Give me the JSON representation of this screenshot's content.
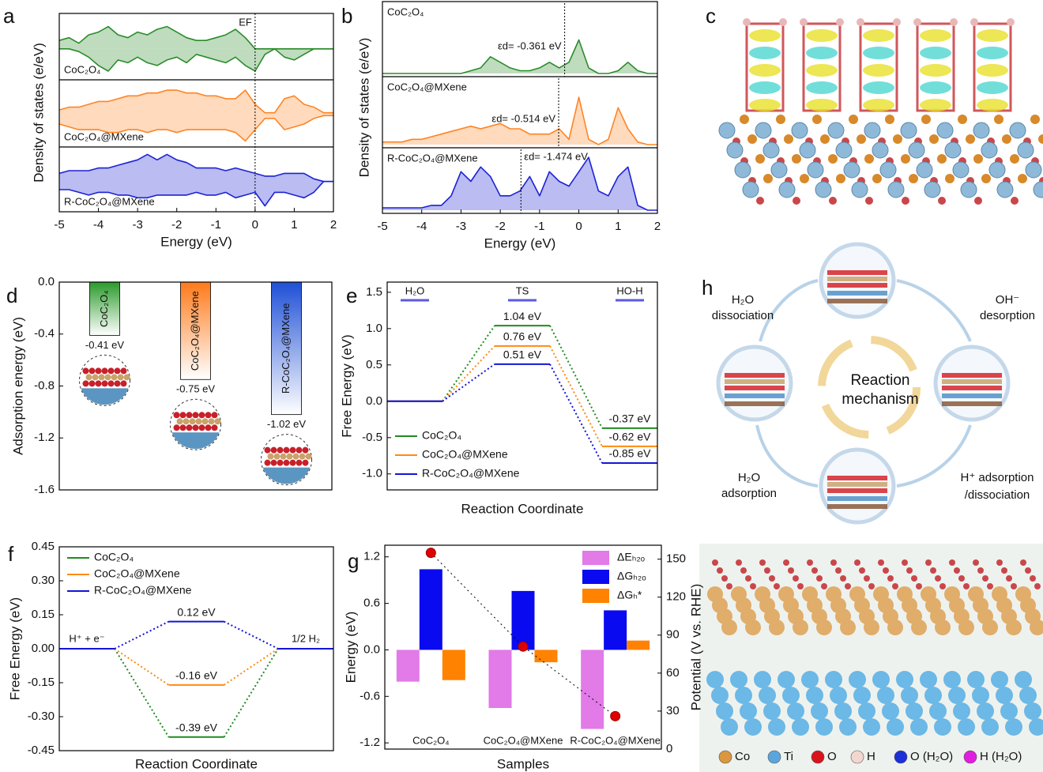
{
  "chart_data": [
    {
      "type": "area",
      "panel": "a",
      "xlabel": "Energy (eV)",
      "ylabel": "Density of states (e/eV)",
      "xlim": [
        -5,
        2
      ],
      "xticks": [
        -5,
        -4,
        -3,
        -2,
        -1,
        0,
        1,
        2
      ],
      "ylim": [
        -1,
        1.1
      ],
      "fermi": {
        "label": "EF",
        "value": 0
      },
      "x": [
        -5,
        -4.75,
        -4.5,
        -4.25,
        -4,
        -3.75,
        -3.5,
        -3.25,
        -3,
        -2.75,
        -2.5,
        -2.25,
        -2,
        -1.75,
        -1.5,
        -1.25,
        -1,
        -0.75,
        -0.5,
        -0.25,
        0,
        0.25,
        0.5,
        0.75,
        1,
        1.25,
        1.5,
        1.75,
        2
      ],
      "series": [
        {
          "name": "CoC₂O₄",
          "color": "#2a8c2a",
          "values": [
            0.3,
            0.4,
            0.2,
            0.5,
            0.6,
            0.8,
            0.5,
            0.4,
            0.6,
            0.5,
            0.7,
            0.8,
            0.6,
            0.4,
            0.3,
            0.3,
            0.4,
            0.5,
            0.7,
            0.4,
            0,
            0,
            0,
            0,
            0,
            0,
            0,
            0,
            0
          ],
          "values_down": [
            0,
            0,
            -0.1,
            -0.3,
            -0.6,
            -0.8,
            -0.4,
            -0.5,
            -0.3,
            -0.5,
            -0.6,
            -0.4,
            -0.3,
            -0.5,
            -0.2,
            -0.3,
            -0.4,
            -0.5,
            -0.3,
            -0.6,
            -0.8,
            -0.2,
            0,
            -0.3,
            -0.4,
            -0.2,
            0,
            0,
            0
          ]
        },
        {
          "name": "CoC₂O₄@MXene",
          "color": "#ff8424",
          "values": [
            0.2,
            0.3,
            0.3,
            0.4,
            0.5,
            0.5,
            0.6,
            0.7,
            0.7,
            0.8,
            0.8,
            0.9,
            0.9,
            0.8,
            0.8,
            0.7,
            0.7,
            0.6,
            0.6,
            0.9,
            0.4,
            0.1,
            0.1,
            0.6,
            0.7,
            0.4,
            0.3,
            0.1,
            0.1
          ],
          "values_down": [
            -0.3,
            -0.4,
            -0.5,
            -0.5,
            -0.5,
            -0.6,
            -0.6,
            -0.5,
            -0.5,
            -0.6,
            -0.5,
            -0.5,
            -0.6,
            -0.5,
            -0.5,
            -0.5,
            -0.5,
            -0.5,
            -0.6,
            -0.9,
            -0.5,
            -0.1,
            -0.1,
            -0.5,
            -0.4,
            -0.3,
            -0.1,
            0,
            0
          ]
        },
        {
          "name": "R-CoC₂O₄@MXene",
          "color": "#1c22d4",
          "values": [
            0.3,
            0.4,
            0.4,
            0.4,
            0.5,
            0.5,
            0.6,
            0.7,
            0.8,
            1.0,
            0.8,
            1.0,
            0.8,
            0.7,
            0.5,
            0.5,
            0.5,
            0.4,
            0.5,
            0.4,
            0.3,
            0.2,
            0.2,
            0.3,
            0.3,
            0.3,
            0.1,
            0,
            0
          ],
          "values_down": [
            -0.3,
            -0.3,
            -0.4,
            -0.5,
            -0.4,
            -0.4,
            -0.5,
            -0.5,
            -0.6,
            -0.6,
            -0.5,
            -0.5,
            -0.5,
            -0.5,
            -0.4,
            -0.5,
            -0.5,
            -0.4,
            -0.6,
            -0.5,
            -0.4,
            -0.9,
            -0.4,
            -0.4,
            -0.5,
            -0.6,
            -0.4,
            0,
            0
          ]
        }
      ]
    },
    {
      "type": "area",
      "panel": "b",
      "xlabel": "Energy (eV)",
      "ylabel": "Density of states (e/eV)",
      "xlim": [
        -5,
        2
      ],
      "xticks": [
        -5,
        -4,
        -3,
        -2,
        -1,
        0,
        1,
        2
      ],
      "ylim": [
        0,
        1.2
      ],
      "x": [
        -5,
        -4.75,
        -4.5,
        -4.25,
        -4,
        -3.75,
        -3.5,
        -3.25,
        -3,
        -2.75,
        -2.5,
        -2.25,
        -2,
        -1.75,
        -1.5,
        -1.25,
        -1,
        -0.75,
        -0.5,
        -0.25,
        0,
        0.25,
        0.5,
        0.75,
        1,
        1.25,
        1.5,
        1.75,
        2
      ],
      "series": [
        {
          "name": "CoC₂O₄",
          "color": "#2a8c2a",
          "ed_value": -0.361,
          "ed_label": "εd= -0.361 eV",
          "values": [
            0,
            0,
            0,
            0,
            0,
            0,
            0,
            0,
            0,
            0.05,
            0.1,
            0.3,
            0.2,
            0.1,
            0.05,
            0.05,
            0.1,
            0.2,
            0.1,
            0.2,
            0.6,
            0.1,
            0,
            0,
            0.05,
            0.2,
            0.05,
            0,
            0
          ]
        },
        {
          "name": "CoC₂O₄@MXene",
          "color": "#ff8424",
          "ed_value": -0.514,
          "ed_label": "εd= -0.514 eV",
          "values": [
            0.05,
            0.05,
            0.05,
            0.1,
            0.1,
            0.15,
            0.2,
            0.25,
            0.3,
            0.35,
            0.3,
            0.35,
            0.4,
            0.3,
            0.3,
            0.2,
            0.2,
            0.2,
            0.3,
            0.1,
            0.9,
            0.1,
            0,
            0.1,
            0.7,
            0.3,
            0.05,
            0,
            0
          ]
        },
        {
          "name": "R-CoC₂O₄@MXene",
          "color": "#1c22d4",
          "ed_value": -1.474,
          "ed_label": "εd= -1.474 eV",
          "values": [
            0.05,
            0.05,
            0.05,
            0.05,
            0.05,
            0.1,
            0.1,
            0.3,
            0.8,
            0.6,
            0.9,
            0.7,
            0.3,
            0.3,
            0.4,
            0.7,
            0.3,
            0.8,
            0.6,
            0.5,
            0.8,
            1.1,
            0.4,
            0.3,
            0.7,
            0.9,
            0.1,
            0,
            0
          ]
        }
      ]
    },
    {
      "type": "bar",
      "panel": "d",
      "ylabel": "Adsorption energy (eV)",
      "categories": [
        "CoC₂O₄",
        "CoC₂O₄@MXene",
        "R-CoC₂O₄@MXene"
      ],
      "values": [
        -0.41,
        -0.75,
        -1.02
      ],
      "value_labels": [
        "-0.41 eV",
        "-0.75 eV",
        "-1.02 eV"
      ],
      "colors": [
        "#2a9a2a",
        "#ff7a1a",
        "#1f4fd6"
      ],
      "ylim": [
        -1.6,
        0
      ],
      "yticks": [
        {
          "value": 0,
          "label": "0.0"
        },
        -0.4,
        -0.8,
        -1.2,
        -1.6
      ]
    },
    {
      "type": "step",
      "panel": "e",
      "xlabel": "Reaction Coordinate",
      "ylabel": "Free Energy (eV)",
      "categories": [
        "H₂O",
        "TS",
        "HO-H"
      ],
      "legend": "lower left",
      "ylim": [
        -1.22,
        1.64
      ],
      "yticks": [
        {
          "value": -1,
          "label": "-1.0"
        },
        -0.5,
        {
          "value": 0,
          "label": "0.0"
        },
        0.5,
        {
          "value": 1,
          "label": "1.0"
        },
        1.5
      ],
      "series": [
        {
          "name": "CoC₂O₄",
          "color": "#1f8c1f",
          "values": [
            0,
            1.04,
            -0.37
          ],
          "value_labels": [
            null,
            "1.04 eV",
            "-0.37 eV"
          ]
        },
        {
          "name": "CoC₂O₄@MXene",
          "color": "#ff8a10",
          "values": [
            0,
            0.76,
            -0.62
          ],
          "value_labels": [
            null,
            "0.76 eV",
            "-0.62 eV"
          ]
        },
        {
          "name": "R-CoC₂O₄@MXene",
          "color": "#1414d8",
          "values": [
            0,
            0.51,
            -0.85
          ],
          "value_labels": [
            null,
            "0.51 eV",
            "-0.85 eV"
          ]
        }
      ]
    },
    {
      "type": "step",
      "panel": "f",
      "xlabel": "Reaction Coordinate",
      "ylabel": "Free Energy (eV)",
      "categories": [
        "H⁺ + e⁻",
        null,
        "1/2 H₂"
      ],
      "legend": "upper left",
      "ylim": [
        -0.45,
        0.45
      ],
      "yticks": [
        -0.45,
        {
          "value": -0.3,
          "label": "-0.30"
        },
        -0.15,
        {
          "value": 0,
          "label": "0.00"
        },
        0.15,
        {
          "value": 0.3,
          "label": "0.30"
        },
        0.45
      ],
      "series": [
        {
          "name": "CoC₂O₄",
          "color": "#1f8c1f",
          "values": [
            0,
            -0.39,
            0
          ],
          "value_labels": [
            null,
            "-0.39 eV",
            null
          ]
        },
        {
          "name": "CoC₂O₄@MXene",
          "color": "#ff8a10",
          "values": [
            0,
            -0.16,
            0
          ],
          "value_labels": [
            null,
            "-0.16 eV",
            null
          ]
        },
        {
          "name": "R-CoC₂O₄@MXene",
          "color": "#1414d8",
          "values": [
            0,
            0.12,
            0
          ],
          "value_labels": [
            null,
            "0.12 eV",
            null
          ]
        }
      ]
    },
    {
      "type": "bar",
      "panel": "g",
      "xlabel": "Samples",
      "ylabel": "Energy (eV)",
      "y2label": "Potential (V vs. RHE)",
      "categories": [
        "CoC₂O₄",
        "CoC₂O₄@MXene",
        "R-CoC₂O₄@MXene"
      ],
      "legend": "upper right",
      "ylim": [
        -1.28,
        1.35
      ],
      "yticks": [
        -1.2,
        -0.6,
        {
          "value": 0,
          "label": "0.0"
        },
        0.6,
        1.2
      ],
      "y2lim": [
        0,
        161
      ],
      "y2ticks": [
        0,
        30,
        60,
        90,
        120,
        150
      ],
      "series": [
        {
          "name": "ΔEₕ₂ₒ",
          "color": "#e27ae8",
          "values": [
            -0.41,
            -0.75,
            -1.02
          ]
        },
        {
          "name": "ΔGₕ₂ₒ",
          "color": "#0a0af0",
          "values": [
            1.04,
            0.76,
            0.51
          ]
        },
        {
          "name": "ΔGₕ*",
          "color": "#ff8200",
          "values": [
            -0.39,
            -0.16,
            0.12
          ]
        },
        {
          "type": "scatter",
          "axis": "y2",
          "color": "#e00000",
          "values": [
            155,
            81,
            26
          ]
        }
      ]
    }
  ],
  "image_c": {
    "panel": "c"
  },
  "diagram_h": {
    "panel": "h",
    "center": [
      "Reaction",
      "mechanism"
    ],
    "steps": [
      [
        "H₂O",
        "dissociation"
      ],
      [
        "OH⁻",
        "desorption"
      ],
      [
        "H⁺ adsorption",
        "/dissociation"
      ],
      [
        "H₂O",
        "adsorption"
      ]
    ],
    "legend": [
      {
        "label": "Co",
        "color": "#d9973f"
      },
      {
        "label": "Ti",
        "color": "#5aa6dc"
      },
      {
        "label": "O",
        "color": "#d8141c"
      },
      {
        "label": "H",
        "color": "#f2d6d0"
      },
      {
        "label": "O (H₂O)",
        "color": "#1c2fd8"
      },
      {
        "label": "H (H₂O)",
        "color": "#e11ee0"
      }
    ]
  }
}
